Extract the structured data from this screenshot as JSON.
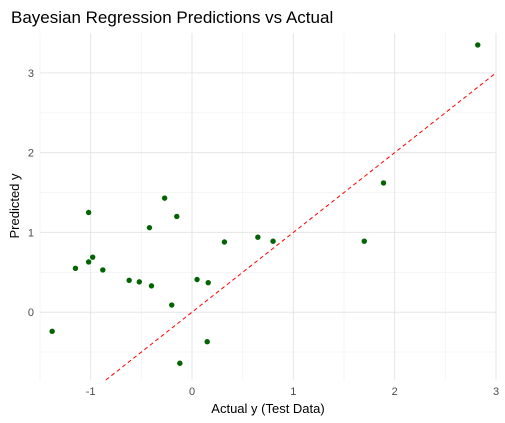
{
  "chart_data": {
    "type": "scatter",
    "title": "Bayesian Regression Predictions vs Actual",
    "xlabel": "Actual y (Test Data)",
    "ylabel": "Predicted y",
    "xlim": [
      -1.5,
      3.0
    ],
    "ylim": [
      -0.85,
      3.5
    ],
    "x_ticks": [
      -1,
      0,
      1,
      2,
      3
    ],
    "x_tick_labels": [
      "-1",
      "0",
      "1",
      "2",
      "3"
    ],
    "y_ticks": [
      0,
      1,
      2,
      3
    ],
    "y_tick_labels": [
      "0",
      "1",
      "2",
      "3"
    ],
    "grid": true,
    "point_color": "#006400",
    "reference_line": {
      "type": "identity",
      "slope": 1,
      "intercept": 0,
      "color": "#ff0000",
      "style": "dashed"
    },
    "points": [
      {
        "x": -1.38,
        "y": -0.24
      },
      {
        "x": -1.15,
        "y": 0.55
      },
      {
        "x": -1.02,
        "y": 1.25
      },
      {
        "x": -1.02,
        "y": 0.63
      },
      {
        "x": -0.98,
        "y": 0.69
      },
      {
        "x": -0.88,
        "y": 0.53
      },
      {
        "x": -0.62,
        "y": 0.4
      },
      {
        "x": -0.52,
        "y": 0.38
      },
      {
        "x": -0.42,
        "y": 1.06
      },
      {
        "x": -0.4,
        "y": 0.33
      },
      {
        "x": -0.27,
        "y": 1.43
      },
      {
        "x": -0.2,
        "y": 0.09
      },
      {
        "x": -0.15,
        "y": 1.2
      },
      {
        "x": -0.12,
        "y": -0.64
      },
      {
        "x": 0.05,
        "y": 0.41
      },
      {
        "x": 0.15,
        "y": -0.37
      },
      {
        "x": 0.16,
        "y": 0.37
      },
      {
        "x": 0.32,
        "y": 0.88
      },
      {
        "x": 0.65,
        "y": 0.94
      },
      {
        "x": 0.8,
        "y": 0.89
      },
      {
        "x": 1.7,
        "y": 0.89
      },
      {
        "x": 1.89,
        "y": 1.62
      },
      {
        "x": 2.82,
        "y": 3.35
      }
    ]
  }
}
